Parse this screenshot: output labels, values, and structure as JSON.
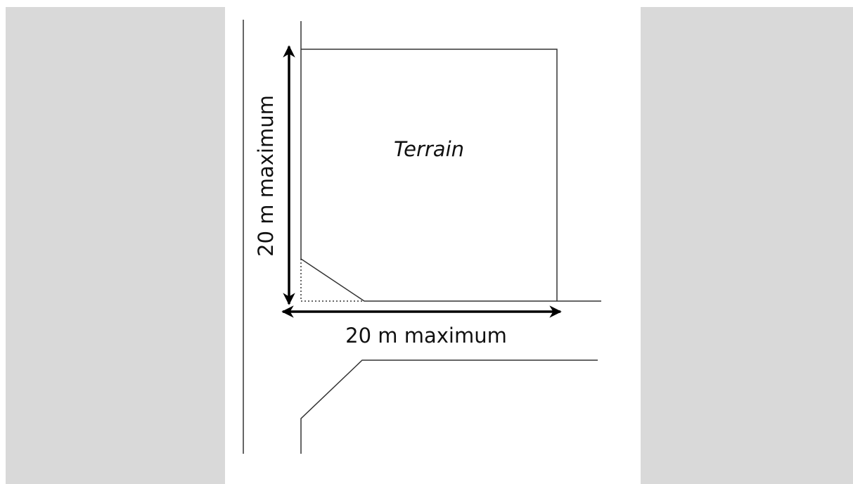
{
  "diagram": {
    "terrain_label": "Terrain",
    "vertical_label": "20 m maximum",
    "horizontal_label": "20 m maximum"
  }
}
